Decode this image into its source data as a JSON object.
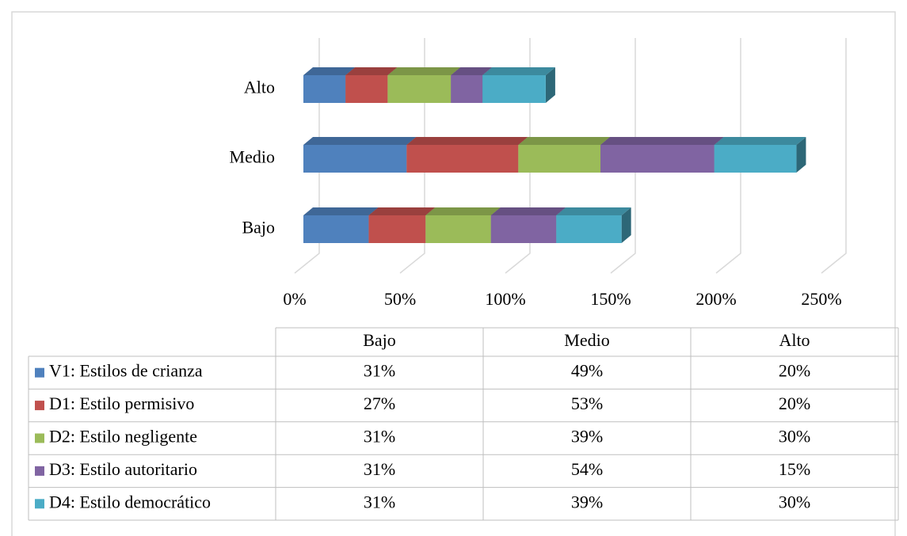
{
  "chart_data": {
    "type": "bar",
    "orientation": "horizontal",
    "stacked": true,
    "three_d": true,
    "categories": [
      "Bajo",
      "Medio",
      "Alto"
    ],
    "series": [
      {
        "name": "V1: Estilos de crianza",
        "color": "#4f81bd",
        "values": [
          31,
          49,
          20
        ],
        "value_labels": [
          "31%",
          "49%",
          "20%"
        ]
      },
      {
        "name": "D1: Estilo permisivo",
        "color": "#c0504d",
        "values": [
          27,
          53,
          20
        ],
        "value_labels": [
          "27%",
          "53%",
          "20%"
        ]
      },
      {
        "name": "D2: Estilo negligente",
        "color": "#9bbb59",
        "values": [
          31,
          39,
          30
        ],
        "value_labels": [
          "31%",
          "39%",
          "30%"
        ]
      },
      {
        "name": "D3: Estilo autoritario",
        "color": "#8064a2",
        "values": [
          31,
          54,
          15
        ],
        "value_labels": [
          "31%",
          "54%",
          "15%"
        ]
      },
      {
        "name": "D4: Estilo democrático",
        "color": "#4bacc6",
        "values": [
          31,
          39,
          30
        ],
        "value_labels": [
          "31%",
          "39%",
          "30%"
        ]
      }
    ],
    "xlim": [
      0,
      250
    ],
    "xticks": [
      {
        "value": 0,
        "label": "0%"
      },
      {
        "value": 50,
        "label": "50%"
      },
      {
        "value": 100,
        "label": "100%"
      },
      {
        "value": 150,
        "label": "150%"
      },
      {
        "value": 200,
        "label": "200%"
      },
      {
        "value": 250,
        "label": "250%"
      }
    ],
    "grid": true,
    "data_table": true
  }
}
